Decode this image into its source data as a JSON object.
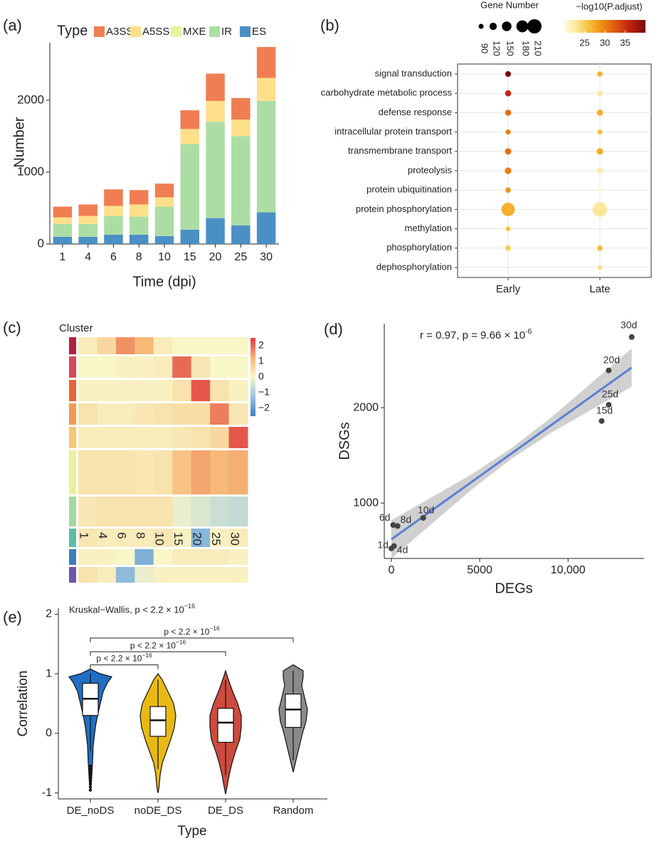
{
  "panel_letters": [
    "(a)",
    "(b)",
    "(c)",
    "(d)",
    "(e)"
  ],
  "chart_data": [
    {
      "panel": "(a)",
      "type": "bar",
      "stacked": true,
      "xlabel": "Time (dpi)",
      "ylabel": "Number",
      "legend_title": "Type",
      "legend_position": "top",
      "ylim": [
        0,
        2800
      ],
      "yticks": [
        0,
        1000,
        2000
      ],
      "categories": [
        "1",
        "4",
        "6",
        "8",
        "10",
        "15",
        "20",
        "25",
        "30"
      ],
      "series": [
        {
          "name": "ES",
          "color": "#4a90c4",
          "values": [
            100,
            100,
            130,
            130,
            110,
            200,
            360,
            260,
            440
          ]
        },
        {
          "name": "IR",
          "color": "#abdda4",
          "values": [
            180,
            180,
            260,
            250,
            410,
            1190,
            1340,
            1240,
            1550
          ]
        },
        {
          "name": "MXE",
          "color": "#e6f5a0",
          "values": [
            0,
            0,
            0,
            0,
            0,
            0,
            0,
            0,
            0
          ]
        },
        {
          "name": "A5SS",
          "color": "#fee08b",
          "values": [
            90,
            110,
            140,
            170,
            130,
            210,
            290,
            230,
            320
          ]
        },
        {
          "name": "A3SS",
          "color": "#f07e52",
          "values": [
            150,
            160,
            230,
            200,
            190,
            260,
            380,
            300,
            430
          ]
        }
      ]
    },
    {
      "panel": "(b)",
      "type": "scatter",
      "subtype": "dot-plot",
      "categories_x": [
        "Early",
        "Late"
      ],
      "categories_y": [
        "signal transduction",
        "carbohydrate metabolic process",
        "defense response",
        "intracellular protein transport",
        "transmembrane transport",
        "proteolysis",
        "protein ubiquitination",
        "protein phosphorylation",
        "methylation",
        "phosphorylation",
        "dephosphorylation"
      ],
      "size_legend_title": "Gene Number",
      "size_legend_values": [
        90,
        120,
        150,
        180,
        210
      ],
      "color_legend_title": "−log10(P.adjust)",
      "color_legend_ticks": [
        25,
        30,
        35
      ],
      "color_range": [
        20,
        40
      ],
      "points": [
        {
          "term": "signal transduction",
          "group": "Early",
          "count": 100,
          "p": 40
        },
        {
          "term": "carbohydrate metabolic process",
          "group": "Early",
          "count": 105,
          "p": 36
        },
        {
          "term": "defense response",
          "group": "Early",
          "count": 105,
          "p": 31
        },
        {
          "term": "intracellular protein transport",
          "group": "Early",
          "count": 92,
          "p": 30
        },
        {
          "term": "transmembrane transport",
          "group": "Early",
          "count": 108,
          "p": 31
        },
        {
          "term": "proteolysis",
          "group": "Early",
          "count": 110,
          "p": 30
        },
        {
          "term": "protein ubiquitination",
          "group": "Early",
          "count": 95,
          "p": 29
        },
        {
          "term": "protein phosphorylation",
          "group": "Early",
          "count": 200,
          "p": 27
        },
        {
          "term": "methylation",
          "group": "Early",
          "count": 88,
          "p": 26
        },
        {
          "term": "phosphorylation",
          "group": "Early",
          "count": 98,
          "p": 25
        },
        {
          "term": "dephosphorylation",
          "group": "Early",
          "count": 0,
          "p": 0,
          "missing": true
        },
        {
          "term": "signal transduction",
          "group": "Late",
          "count": 95,
          "p": 27
        },
        {
          "term": "carbohydrate metabolic process",
          "group": "Late",
          "count": 100,
          "p": 23
        },
        {
          "term": "defense response",
          "group": "Late",
          "count": 108,
          "p": 27
        },
        {
          "term": "intracellular protein transport",
          "group": "Late",
          "count": 90,
          "p": 26
        },
        {
          "term": "transmembrane transport",
          "group": "Late",
          "count": 112,
          "p": 27
        },
        {
          "term": "proteolysis",
          "group": "Late",
          "count": 108,
          "p": 22
        },
        {
          "term": "protein ubiquitination",
          "group": "Late",
          "count": 80,
          "p": 20
        },
        {
          "term": "protein phosphorylation",
          "group": "Late",
          "count": 215,
          "p": 23
        },
        {
          "term": "methylation",
          "group": "Late",
          "count": 0,
          "p": 0,
          "missing": true
        },
        {
          "term": "phosphorylation",
          "group": "Late",
          "count": 100,
          "p": 26
        },
        {
          "term": "dephosphorylation",
          "group": "Late",
          "count": 82,
          "p": 24
        }
      ]
    },
    {
      "panel": "(c)",
      "type": "heatmap",
      "legend_title": "Cluster",
      "x": [
        "1",
        "4",
        "6",
        "8",
        "10",
        "15",
        "20",
        "25",
        "30"
      ],
      "scale_ticks": [
        "2",
        "1",
        "0",
        "−1",
        "−2"
      ],
      "scale_range": [
        -2.5,
        2.5
      ],
      "cluster_colors": [
        "#b2203f",
        "#d6495c",
        "#e8643a",
        "#f19a4f",
        "#f7c86e",
        "#e8f29a",
        "#a3d8a0",
        "#5fbda5",
        "#3c7fb8",
        "#6a57a6"
      ],
      "cluster_profiles": [
        [
          0.2,
          0.6,
          1.6,
          1.2,
          0.2,
          0.0,
          0.0,
          0.0,
          0.0
        ],
        [
          0.0,
          0.0,
          0.1,
          0.1,
          0.2,
          2.0,
          0.3,
          0.0,
          0.0
        ],
        [
          0.1,
          0.1,
          0.1,
          0.1,
          0.1,
          0.4,
          2.2,
          0.4,
          0.1
        ],
        [
          0.4,
          0.2,
          0.2,
          0.3,
          0.4,
          0.5,
          0.5,
          1.8,
          0.3
        ],
        [
          0.2,
          0.2,
          0.2,
          0.2,
          0.2,
          0.3,
          0.4,
          0.6,
          2.2
        ],
        [
          0.4,
          0.4,
          0.4,
          0.3,
          0.4,
          1.0,
          1.4,
          1.2,
          1.3
        ],
        [
          0.3,
          0.4,
          0.4,
          0.4,
          0.4,
          -0.2,
          -0.4,
          -0.6,
          -0.7
        ],
        [
          0.3,
          0.2,
          0.2,
          0.2,
          0.3,
          0.1,
          -1.5,
          0.1,
          0.2
        ],
        [
          0.1,
          0.1,
          0.0,
          -1.6,
          0.0,
          0.2,
          0.2,
          0.2,
          0.1
        ],
        [
          0.4,
          0.2,
          -1.4,
          -0.2,
          0.1,
          0.1,
          0.1,
          0.1,
          0.1
        ]
      ]
    },
    {
      "panel": "(d)",
      "type": "scatter",
      "xlabel": "DEGs",
      "ylabel": "DSGs",
      "annotation": "r = 0.97, p = 9.66 × 10",
      "annotation_exponent": "-6",
      "xlim": [
        -400,
        14300
      ],
      "ylim": [
        420,
        2880
      ],
      "xticks": [
        0,
        5000,
        10000
      ],
      "xtick_labels": [
        "0",
        "5000",
        "10,000"
      ],
      "yticks": [
        1000,
        2000
      ],
      "yticks_labels": [
        "1000",
        "2000"
      ],
      "line_color": "#5a7fd6",
      "points": [
        {
          "label": "1d",
          "x": 0,
          "y": 525
        },
        {
          "label": "4d",
          "x": 150,
          "y": 550
        },
        {
          "label": "6d",
          "x": 100,
          "y": 770
        },
        {
          "label": "8d",
          "x": 350,
          "y": 760
        },
        {
          "label": "10d",
          "x": 1800,
          "y": 845
        },
        {
          "label": "15d",
          "x": 11900,
          "y": 1860
        },
        {
          "label": "20d",
          "x": 12300,
          "y": 2390
        },
        {
          "label": "25d",
          "x": 12300,
          "y": 2030
        },
        {
          "label": "30d",
          "x": 13600,
          "y": 2740
        }
      ],
      "fit": {
        "x": [
          0,
          13600
        ],
        "y": [
          620,
          2420
        ]
      },
      "ci_width": [
        200,
        140,
        80,
        55,
        80,
        140,
        200
      ]
    },
    {
      "panel": "(e)",
      "type": "violin",
      "xlabel": "Type",
      "ylabel": "Correlation",
      "annotation": "Kruskal−Wallis, p < 2.2 × 10",
      "annotation_exponent": "−16",
      "ylim": [
        -1.1,
        2.1
      ],
      "yticks": [
        -1,
        0,
        1,
        2
      ],
      "categories": [
        "DE_noDS",
        "noDE_DS",
        "DE_DS",
        "Random"
      ],
      "colors": [
        "#1f6fc4",
        "#e9b913",
        "#cc4b3e",
        "#8a8a8a"
      ],
      "box": [
        {
          "q1": 0.3,
          "median": 0.58,
          "q3": 0.84,
          "whisker_low": -0.3,
          "whisker_high": 1.0
        },
        {
          "q1": -0.05,
          "median": 0.22,
          "q3": 0.45,
          "whisker_low": -0.6,
          "whisker_high": 0.9
        },
        {
          "q1": -0.15,
          "median": 0.18,
          "q3": 0.42,
          "whisker_low": -0.7,
          "whisker_high": 0.9
        },
        {
          "q1": 0.1,
          "median": 0.4,
          "q3": 0.66,
          "whisker_low": -0.45,
          "whisker_high": 1.05
        }
      ],
      "brackets": [
        {
          "from": 0,
          "to": 1,
          "label": "p < 2.2 × 10",
          "exponent": "−16",
          "y": 1.15
        },
        {
          "from": 0,
          "to": 2,
          "label": "p < 2.2 × 10",
          "exponent": "−16",
          "y": 1.37
        },
        {
          "from": 0,
          "to": 3,
          "label": "p < 2.2 × 10",
          "exponent": "−16",
          "y": 1.6
        }
      ]
    }
  ]
}
